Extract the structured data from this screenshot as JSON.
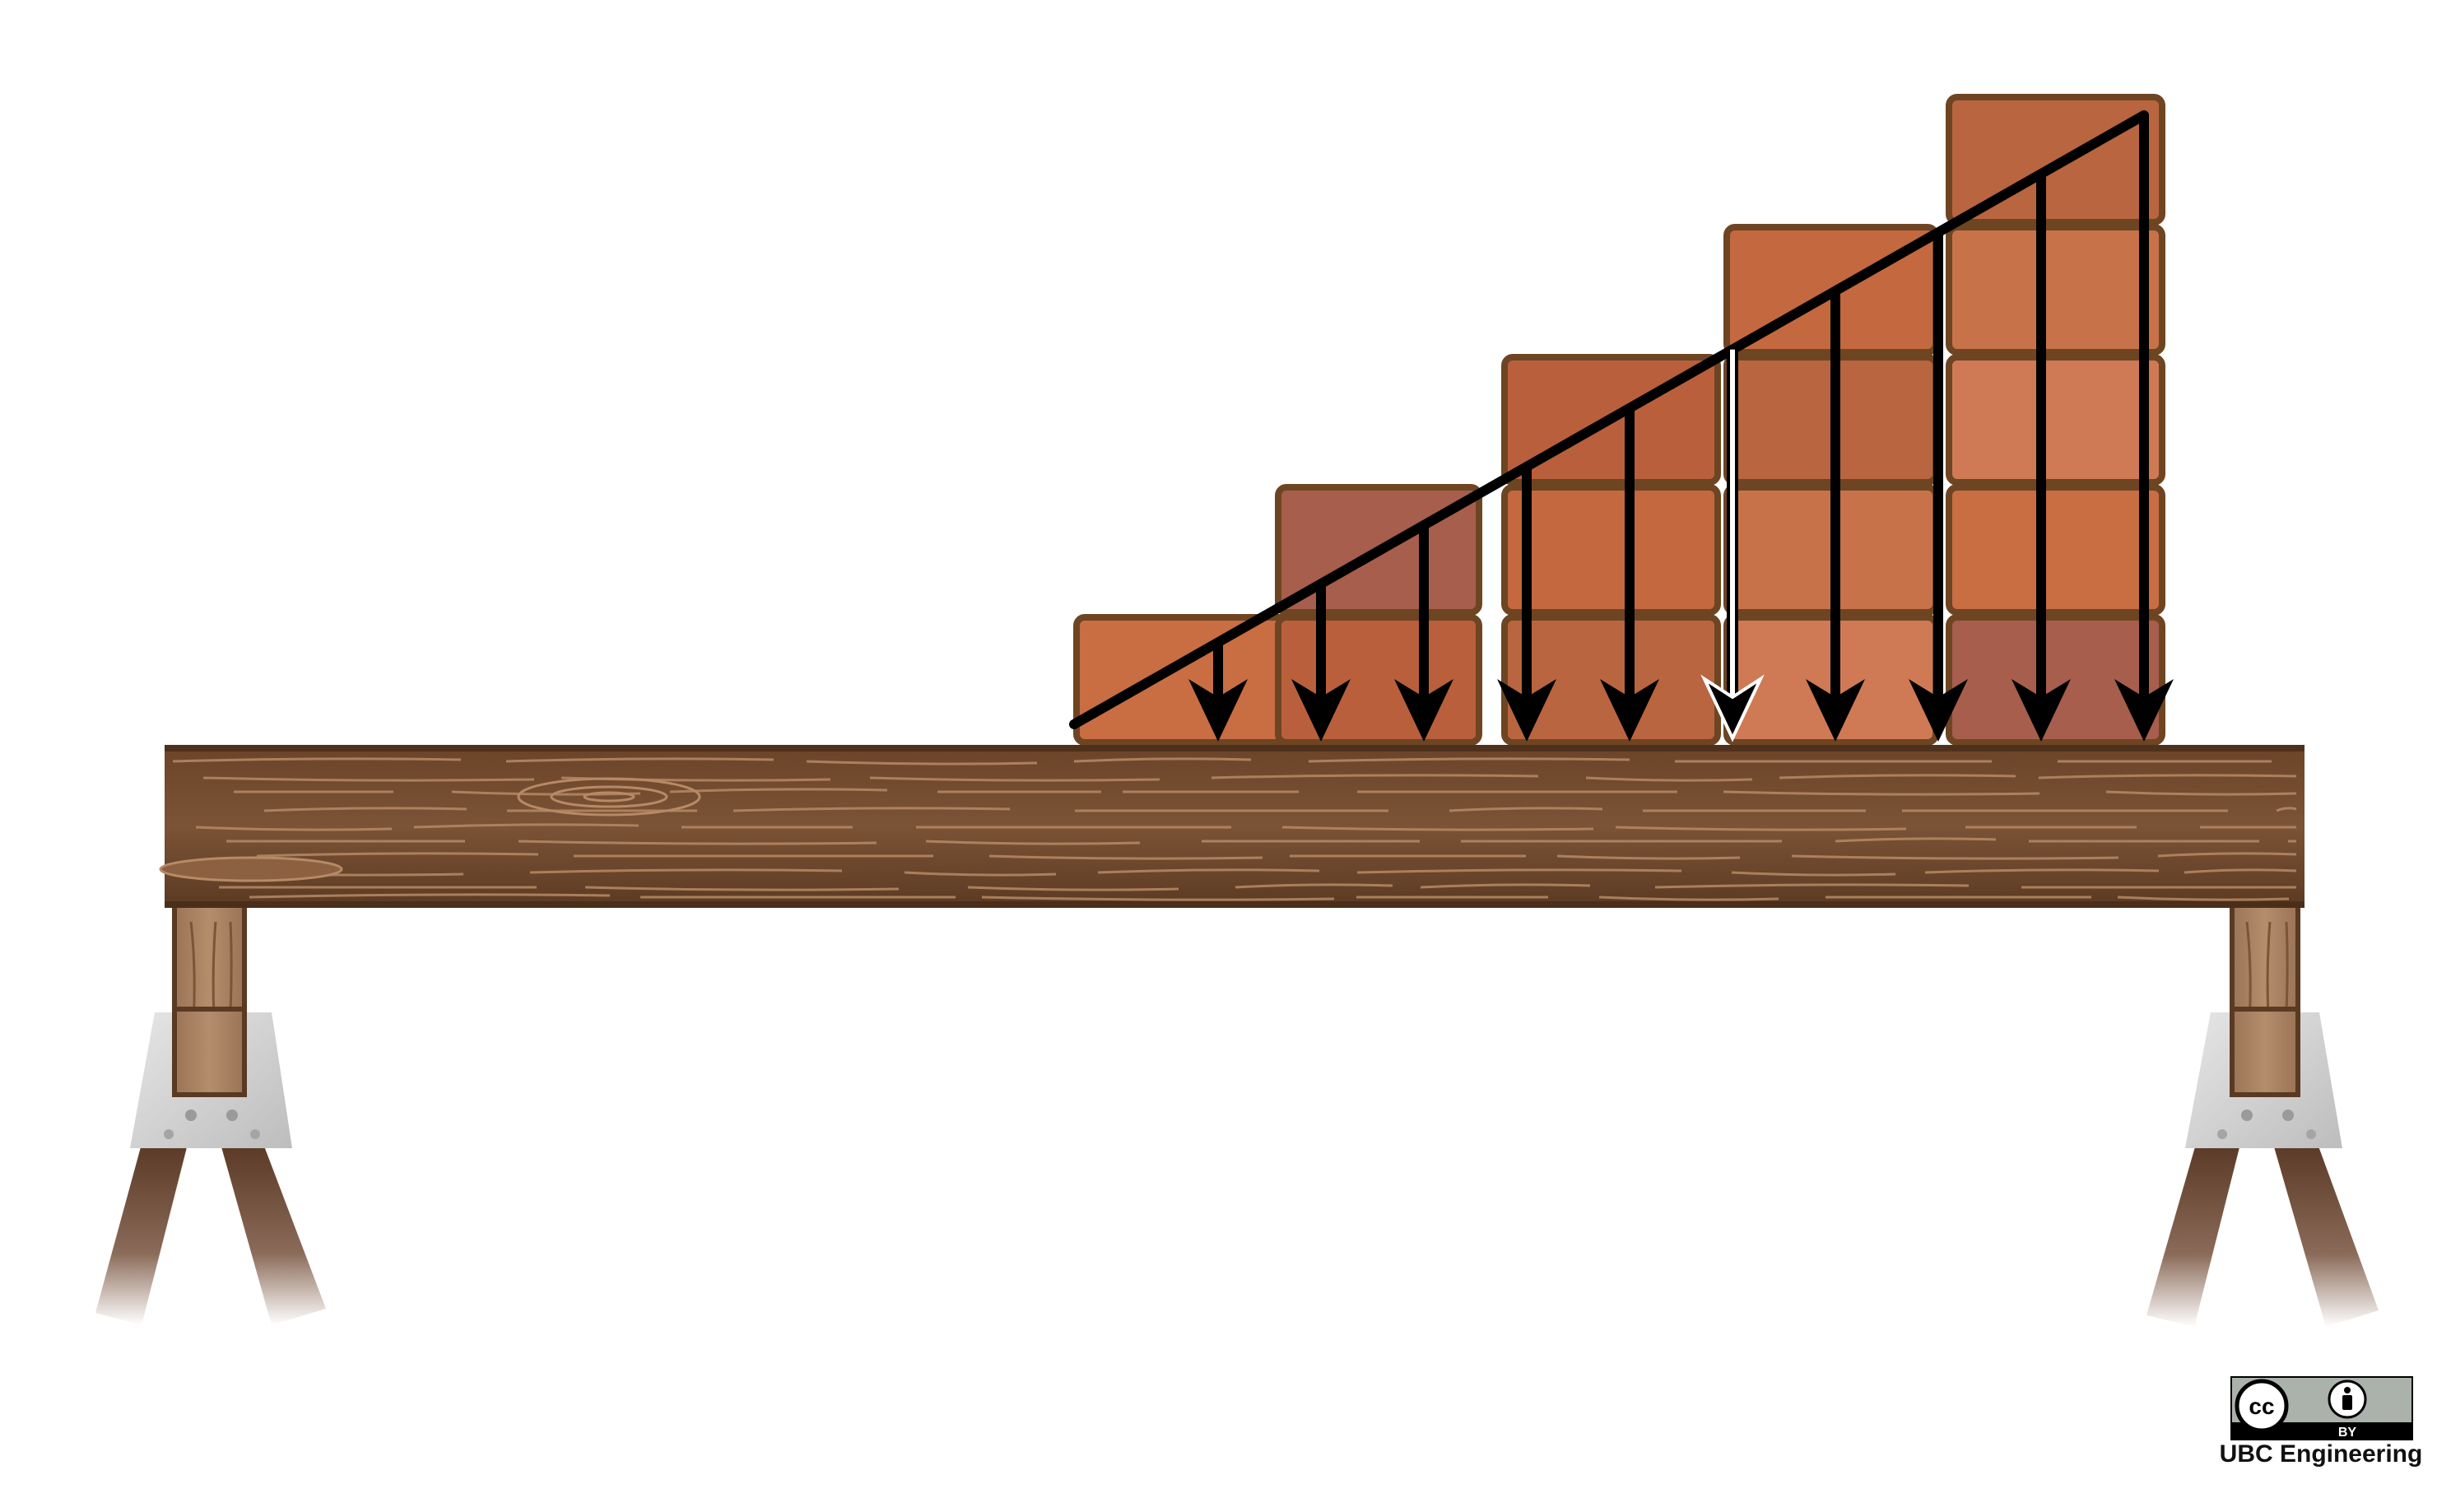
{
  "diagram": {
    "type": "linearly varying distributed load on a simply supported beam",
    "beam": {
      "material": "wood",
      "supports": [
        "left-sawhorse",
        "right-sawhorse"
      ]
    },
    "bricks": {
      "columns": [
        {
          "stack_count": 1
        },
        {
          "stack_count": 2
        },
        {
          "stack_count": 3
        },
        {
          "stack_count": 4
        },
        {
          "stack_count": 5
        }
      ]
    },
    "load": {
      "shape": "triangular",
      "intensity_at_start": 0,
      "intensity_at_end": "max",
      "arrow_count": 10,
      "resultant_arrow_index": 5,
      "resultant_arrow_style": "white outline"
    },
    "colors": {
      "brick_fill": "#c96d43",
      "brick_outline": "#6e4522",
      "wood_dark": "#5a3a22",
      "wood_mid": "#7a5236",
      "wood_grain": "#b78a66",
      "arrow": "#000000",
      "bracket": "#d9d9d9"
    }
  },
  "license": {
    "badge_icons": [
      "cc-icon",
      "attribution-icon"
    ],
    "badge_label": "BY",
    "credit": "UBC Engineering"
  }
}
